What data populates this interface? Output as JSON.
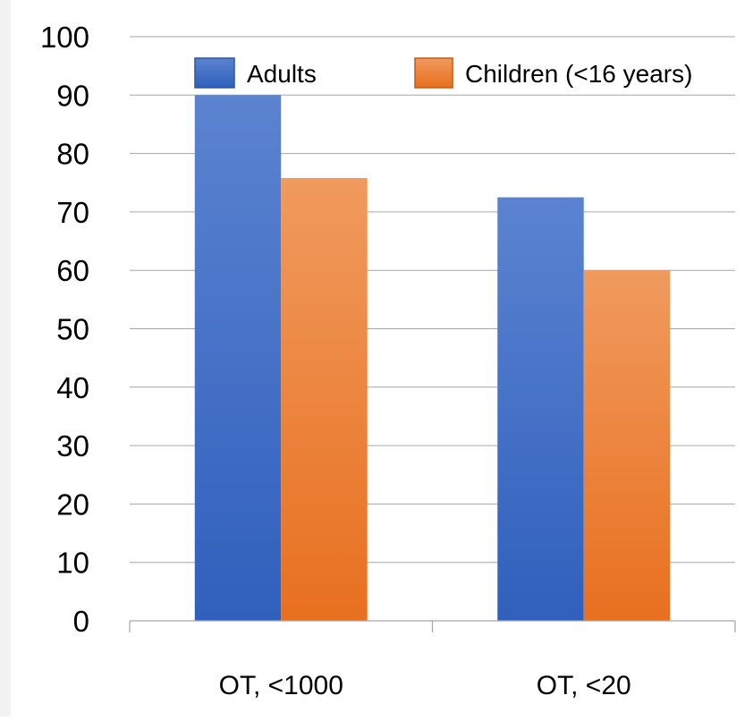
{
  "chart_data": {
    "type": "bar",
    "categories": [
      "OT, <1000",
      "OT, <20"
    ],
    "series": [
      {
        "name": "Adults",
        "values": [
          90,
          72.5
        ],
        "color": "#4472c4"
      },
      {
        "name": "Children (<16 years)",
        "values": [
          75.8,
          60
        ],
        "color": "#ed7d31"
      }
    ],
    "yticks": [
      "0",
      "10",
      "20",
      "30",
      "40",
      "50",
      "60",
      "70",
      "80",
      "90",
      "100"
    ],
    "ylim": [
      0,
      100
    ],
    "grid": true,
    "legend": "top"
  }
}
